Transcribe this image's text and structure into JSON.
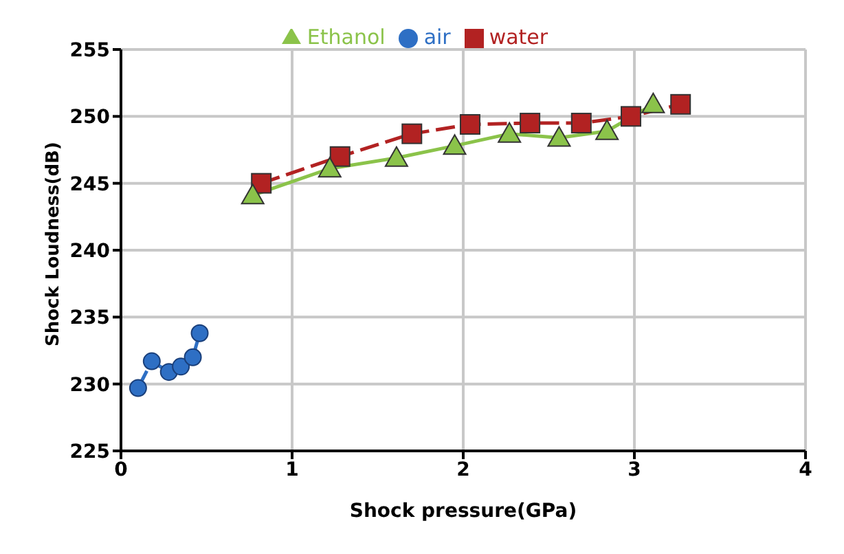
{
  "chart_data": {
    "type": "line",
    "xlabel": "Shock pressure(GPa)",
    "ylabel": "Shock Loudness(dB)",
    "xlim": [
      0,
      4
    ],
    "xticks": [
      0,
      1,
      2,
      3,
      4
    ],
    "ylim": [
      225,
      255
    ],
    "yticks": [
      225,
      230,
      235,
      240,
      245,
      250,
      255
    ],
    "grid": true,
    "legend": "top",
    "series": [
      {
        "name": "air",
        "color": "#2e6fc4",
        "marker": "circle",
        "line_style": "dashed",
        "x": [
          0.1,
          0.18,
          0.28,
          0.35,
          0.42,
          0.46
        ],
        "values": [
          229.7,
          231.7,
          230.9,
          231.3,
          232.0,
          233.8
        ]
      },
      {
        "name": "water",
        "color": "#b22222",
        "marker": "square",
        "line_style": "dashed",
        "x": [
          0.82,
          1.28,
          1.7,
          2.04,
          2.39,
          2.69,
          2.98,
          3.27
        ],
        "values": [
          245.0,
          247.0,
          248.7,
          249.4,
          249.5,
          249.5,
          250.0,
          250.9
        ]
      },
      {
        "name": "Ethanol",
        "color": "#8bc34a",
        "marker": "triangle",
        "line_style": "solid",
        "x": [
          0.77,
          1.22,
          1.61,
          1.95,
          2.27,
          2.56,
          2.84,
          3.11
        ],
        "values": [
          244.1,
          246.1,
          246.9,
          247.8,
          248.7,
          248.4,
          248.9,
          250.9
        ]
      }
    ]
  }
}
